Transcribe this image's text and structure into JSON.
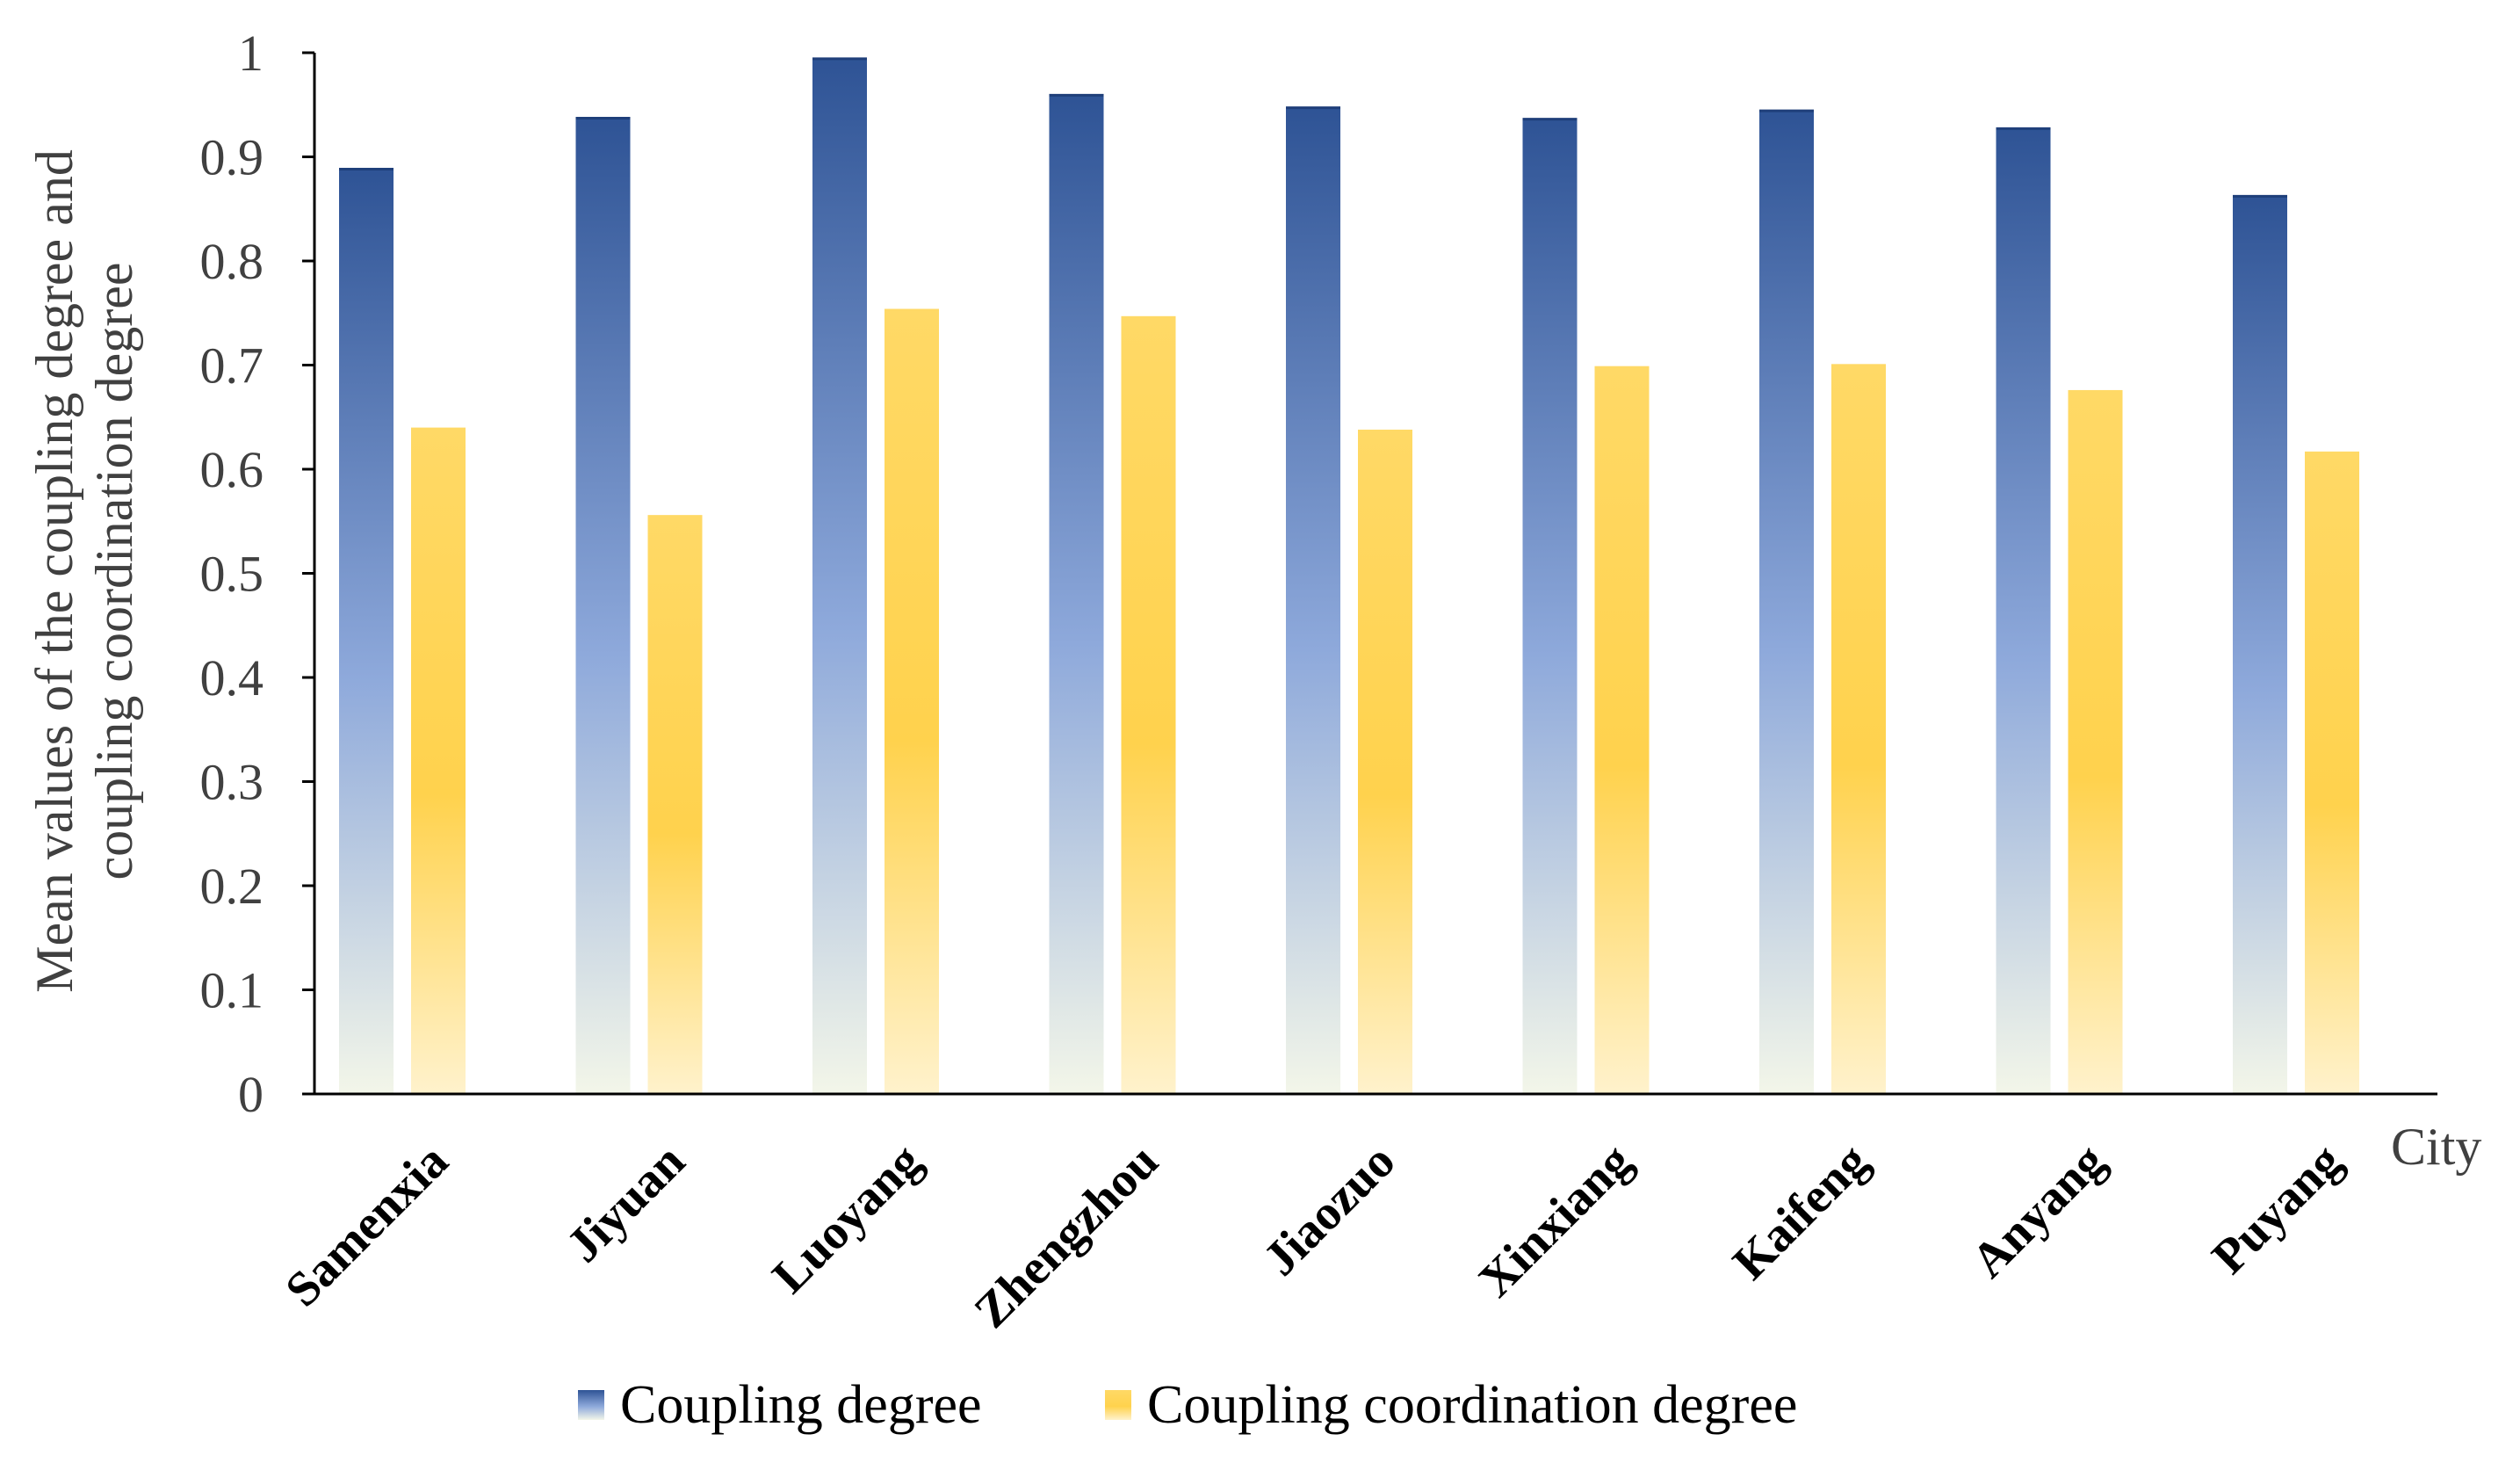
{
  "chart_data": {
    "type": "bar",
    "title": "",
    "xlabel": "City",
    "ylabel_lines": [
      "Mean values of the coupling degree and",
      "coupling coordination degree"
    ],
    "ylim": [
      0,
      1
    ],
    "yticks": [
      "0",
      "0.1",
      "0.2",
      "0.3",
      "0.4",
      "0.5",
      "0.6",
      "0.7",
      "0.8",
      "0.9",
      "1"
    ],
    "ytick_values": [
      0,
      0.1,
      0.2,
      0.3,
      0.4,
      0.5,
      0.6,
      0.7,
      0.8,
      0.9,
      1
    ],
    "grid": false,
    "legend_position": "bottom",
    "categories": [
      "Samenxia",
      "Jiyuan",
      "Luoyang",
      "Zhengzhou",
      "Jiaozuo",
      "Xinxiang",
      "Kaifeng",
      "Anyang",
      "Puyang"
    ],
    "series": [
      {
        "name": "Coupling degree",
        "values": [
          0.889,
          0.938,
          0.995,
          0.96,
          0.948,
          0.937,
          0.945,
          0.928,
          0.863
        ],
        "color_top": "#2e5395",
        "color_mid": "#8ea9db",
        "color_bottom": "#f3f6e9"
      },
      {
        "name": "Coupling coordination degree",
        "values": [
          0.64,
          0.556,
          0.754,
          0.747,
          0.638,
          0.699,
          0.701,
          0.676,
          0.617
        ],
        "color_top": "#ffd966",
        "color_mid": "#ffd24d",
        "color_bottom": "#fff2cc"
      }
    ]
  }
}
